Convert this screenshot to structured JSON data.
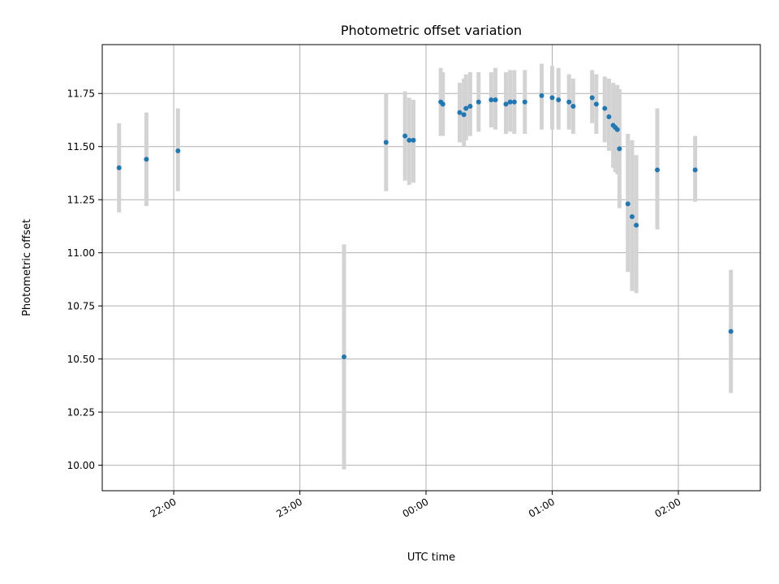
{
  "chart_data": {
    "type": "scatter",
    "title": "Photometric offset variation",
    "xlabel": "UTC time",
    "ylabel": "Photometric offset",
    "x_tick_labels": [
      "22:00",
      "23:00",
      "00:00",
      "01:00",
      "02:00"
    ],
    "x_tick_values": [
      "22:00",
      "23:00",
      "00:00",
      "01:00",
      "02:00"
    ],
    "y_tick_labels": [
      "10.00",
      "10.25",
      "10.50",
      "10.75",
      "11.00",
      "11.25",
      "11.50",
      "11.75"
    ],
    "y_tick_values": [
      10.0,
      10.25,
      10.5,
      10.75,
      11.0,
      11.25,
      11.5,
      11.75
    ],
    "xlim": [
      "21:26",
      "02:39"
    ],
    "ylim": [
      9.88,
      11.98
    ],
    "grid": true,
    "marker_color": "#1f77b4",
    "errorbar_color": "#d3d3d3",
    "points": [
      {
        "x": "21:34",
        "y": 11.4,
        "yerr_low": 11.19,
        "yerr_high": 11.61
      },
      {
        "x": "21:47",
        "y": 11.44,
        "yerr_low": 11.22,
        "yerr_high": 11.66
      },
      {
        "x": "22:02",
        "y": 11.48,
        "yerr_low": 11.29,
        "yerr_high": 11.68
      },
      {
        "x": "23:21",
        "y": 10.51,
        "yerr_low": 9.98,
        "yerr_high": 11.04
      },
      {
        "x": "23:41",
        "y": 11.52,
        "yerr_low": 11.29,
        "yerr_high": 11.75
      },
      {
        "x": "23:50",
        "y": 11.55,
        "yerr_low": 11.34,
        "yerr_high": 11.76
      },
      {
        "x": "23:52",
        "y": 11.53,
        "yerr_low": 11.32,
        "yerr_high": 11.73
      },
      {
        "x": "23:54",
        "y": 11.53,
        "yerr_low": 11.33,
        "yerr_high": 11.72
      },
      {
        "x": "00:07",
        "y": 11.71,
        "yerr_low": 11.55,
        "yerr_high": 11.87
      },
      {
        "x": "00:08",
        "y": 11.7,
        "yerr_low": 11.55,
        "yerr_high": 11.85
      },
      {
        "x": "00:16",
        "y": 11.66,
        "yerr_low": 11.52,
        "yerr_high": 11.8
      },
      {
        "x": "00:18",
        "y": 11.65,
        "yerr_low": 11.5,
        "yerr_high": 11.82
      },
      {
        "x": "00:19",
        "y": 11.68,
        "yerr_low": 11.53,
        "yerr_high": 11.84
      },
      {
        "x": "00:21",
        "y": 11.69,
        "yerr_low": 11.55,
        "yerr_high": 11.85
      },
      {
        "x": "00:25",
        "y": 11.71,
        "yerr_low": 11.57,
        "yerr_high": 11.85
      },
      {
        "x": "00:31",
        "y": 11.72,
        "yerr_low": 11.59,
        "yerr_high": 11.85
      },
      {
        "x": "00:33",
        "y": 11.72,
        "yerr_low": 11.58,
        "yerr_high": 11.87
      },
      {
        "x": "00:38",
        "y": 11.7,
        "yerr_low": 11.56,
        "yerr_high": 11.85
      },
      {
        "x": "00:40",
        "y": 11.71,
        "yerr_low": 11.57,
        "yerr_high": 11.86
      },
      {
        "x": "00:42",
        "y": 11.71,
        "yerr_low": 11.56,
        "yerr_high": 11.86
      },
      {
        "x": "00:47",
        "y": 11.71,
        "yerr_low": 11.56,
        "yerr_high": 11.86
      },
      {
        "x": "00:55",
        "y": 11.74,
        "yerr_low": 11.58,
        "yerr_high": 11.89
      },
      {
        "x": "01:00",
        "y": 11.73,
        "yerr_low": 11.58,
        "yerr_high": 11.88
      },
      {
        "x": "01:03",
        "y": 11.72,
        "yerr_low": 11.58,
        "yerr_high": 11.87
      },
      {
        "x": "01:08",
        "y": 11.71,
        "yerr_low": 11.58,
        "yerr_high": 11.84
      },
      {
        "x": "01:10",
        "y": 11.69,
        "yerr_low": 11.56,
        "yerr_high": 11.82
      },
      {
        "x": "01:19",
        "y": 11.73,
        "yerr_low": 11.61,
        "yerr_high": 11.86
      },
      {
        "x": "01:21",
        "y": 11.7,
        "yerr_low": 11.56,
        "yerr_high": 11.84
      },
      {
        "x": "01:25",
        "y": 11.68,
        "yerr_low": 11.52,
        "yerr_high": 11.83
      },
      {
        "x": "01:27",
        "y": 11.64,
        "yerr_low": 11.48,
        "yerr_high": 11.82
      },
      {
        "x": "01:29",
        "y": 11.6,
        "yerr_low": 11.4,
        "yerr_high": 11.8
      },
      {
        "x": "01:30",
        "y": 11.59,
        "yerr_low": 11.38,
        "yerr_high": 11.79
      },
      {
        "x": "01:31",
        "y": 11.58,
        "yerr_low": 11.37,
        "yerr_high": 11.79
      },
      {
        "x": "01:32",
        "y": 11.49,
        "yerr_low": 11.21,
        "yerr_high": 11.77
      },
      {
        "x": "01:36",
        "y": 11.23,
        "yerr_low": 10.91,
        "yerr_high": 11.56
      },
      {
        "x": "01:38",
        "y": 11.17,
        "yerr_low": 10.82,
        "yerr_high": 11.53
      },
      {
        "x": "01:40",
        "y": 11.13,
        "yerr_low": 10.81,
        "yerr_high": 11.46
      },
      {
        "x": "01:50",
        "y": 11.39,
        "yerr_low": 11.11,
        "yerr_high": 11.68
      },
      {
        "x": "02:08",
        "y": 11.39,
        "yerr_low": 11.24,
        "yerr_high": 11.55
      },
      {
        "x": "02:25",
        "y": 10.63,
        "yerr_low": 10.34,
        "yerr_high": 10.92
      }
    ]
  }
}
